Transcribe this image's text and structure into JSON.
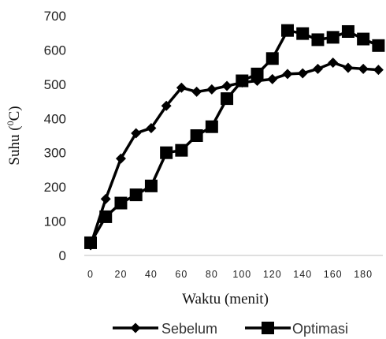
{
  "chart_data": {
    "type": "line",
    "xlabel": "Waktu (menit)",
    "ylabel_main": "Suhu (",
    "ylabel_sup": "0",
    "ylabel_tail": "C)",
    "xlim": [
      0,
      195
    ],
    "ylim": [
      0,
      700
    ],
    "xticks": [
      0,
      20,
      40,
      60,
      80,
      100,
      120,
      140,
      160,
      180
    ],
    "yticks": [
      0,
      100,
      200,
      300,
      400,
      500,
      600,
      700
    ],
    "legend_position": "bottom",
    "series": [
      {
        "name": "Sebelum",
        "marker": "diamond",
        "color": "#000000",
        "x": [
          0,
          10,
          20,
          30,
          40,
          50,
          60,
          70,
          80,
          90,
          100,
          110,
          120,
          130,
          140,
          150,
          160,
          170,
          180,
          190
        ],
        "y": [
          30,
          165,
          283,
          357,
          372,
          437,
          490,
          478,
          485,
          495,
          505,
          510,
          515,
          530,
          532,
          545,
          563,
          548,
          545,
          542
        ]
      },
      {
        "name": "Optimasi",
        "marker": "square",
        "color": "#000000",
        "x": [
          0,
          10,
          20,
          30,
          40,
          50,
          60,
          70,
          80,
          90,
          100,
          110,
          120,
          130,
          140,
          150,
          160,
          170,
          180,
          190
        ],
        "y": [
          37,
          113,
          153,
          177,
          203,
          300,
          307,
          350,
          376,
          458,
          510,
          530,
          575,
          657,
          648,
          630,
          637,
          654,
          632,
          613
        ]
      }
    ]
  }
}
